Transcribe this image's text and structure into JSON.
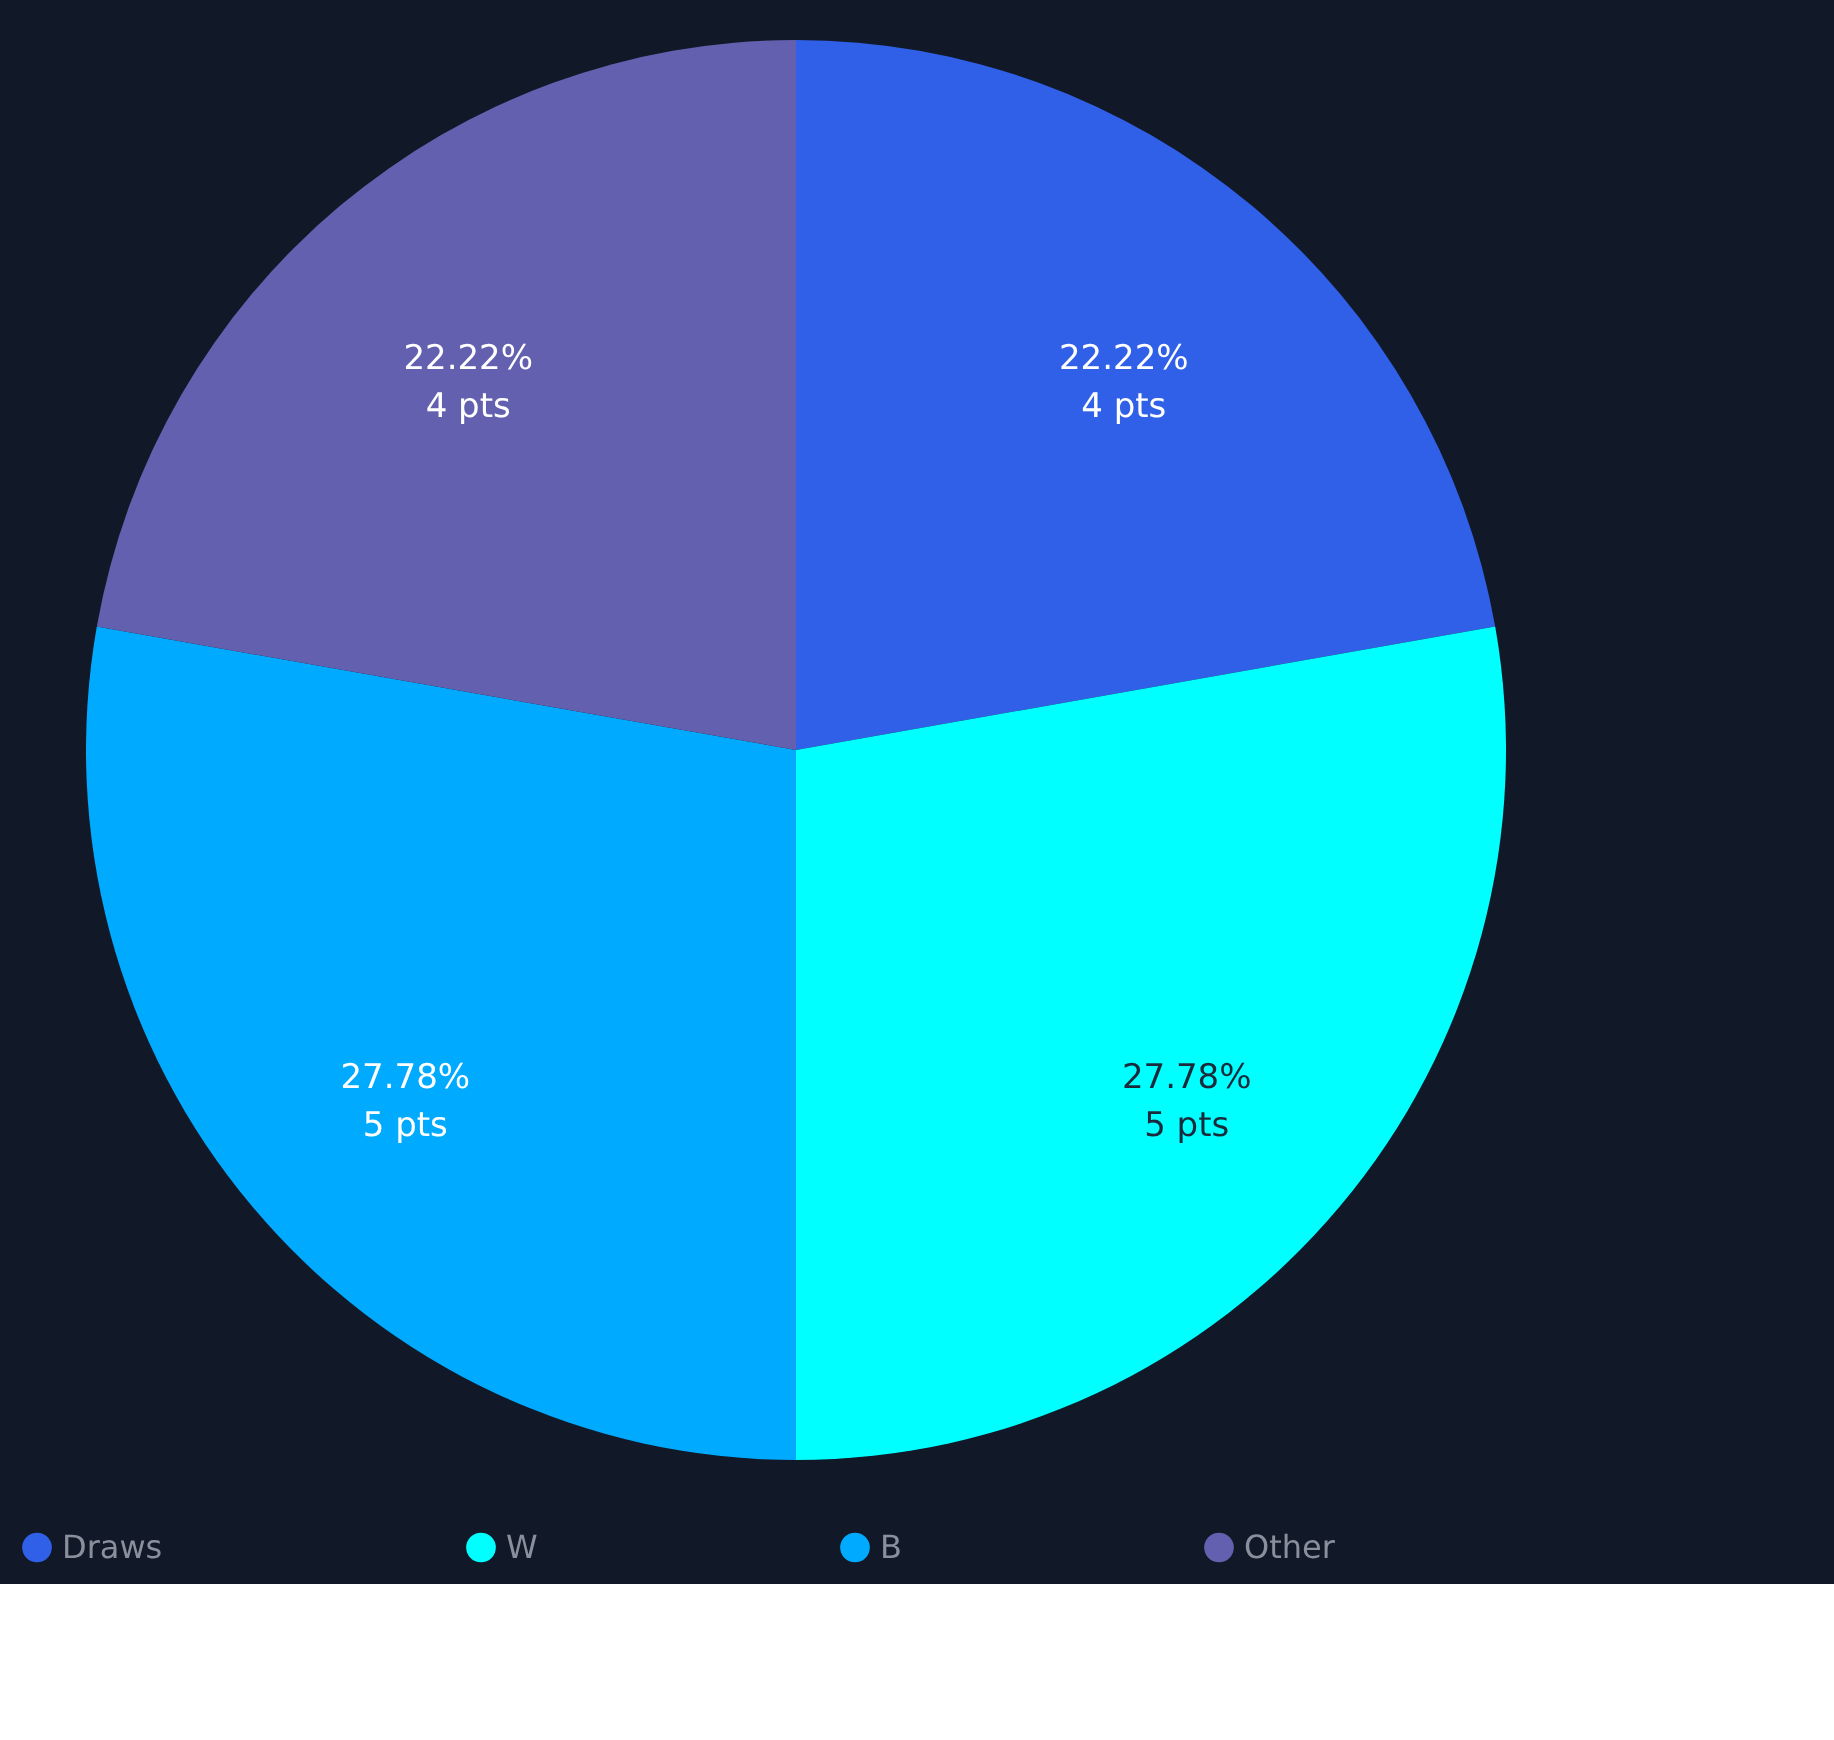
{
  "chart_data": {
    "type": "pie",
    "categories": [
      "Draws",
      "W",
      "B",
      "Other"
    ],
    "values": [
      22.22,
      27.78,
      27.78,
      22.22
    ],
    "colors": [
      "#3060e8",
      "#00ffff",
      "#00aaff",
      "#6460b0"
    ],
    "value_labels": [
      "22.22%\n4 pts",
      "27.78%\n5 pts",
      "27.78%\n5 pts",
      "22.22%\n4 pts"
    ],
    "legend": "bottom"
  }
}
